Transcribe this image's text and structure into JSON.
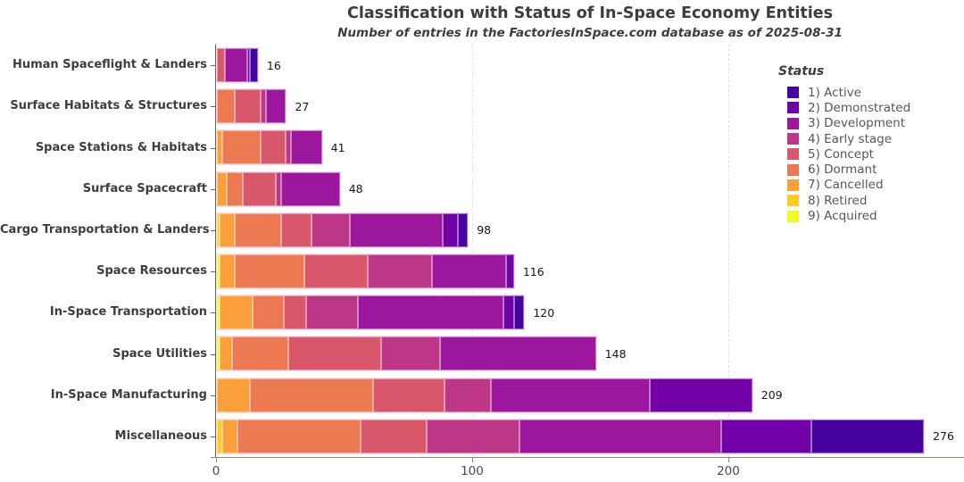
{
  "chart_data": {
    "type": "bar",
    "orientation": "horizontal",
    "stacked": true,
    "title": "Classification with Status of In-Space Economy Entities",
    "subtitle": "Number of entries in the FactoriesInSpace.com database as of 2025-08-31",
    "x_axis": {
      "min": 0,
      "max": 292,
      "ticks": [
        0,
        100,
        200
      ],
      "gridlines": [
        100,
        200
      ],
      "grid_style": "dashed"
    },
    "legend": {
      "title": "Status",
      "position": "top-right",
      "entries": [
        {
          "key": "active",
          "label": "1)  Active",
          "color": "#46039f"
        },
        {
          "key": "demonstrated",
          "label": "2)  Demonstrated",
          "color": "#7301a8"
        },
        {
          "key": "development",
          "label": "3)  Development",
          "color": "#9c179e"
        },
        {
          "key": "early_stage",
          "label": "4)  Early stage",
          "color": "#bd3786"
        },
        {
          "key": "concept",
          "label": "5)  Concept",
          "color": "#d8576b"
        },
        {
          "key": "dormant",
          "label": "6)  Dormant",
          "color": "#ed7953"
        },
        {
          "key": "cancelled",
          "label": "7)  Cancelled",
          "color": "#fb9f3a"
        },
        {
          "key": "retired",
          "label": "8)  Retired",
          "color": "#fdca26"
        },
        {
          "key": "acquired",
          "label": "9)  Acquired",
          "color": "#f0f921"
        }
      ]
    },
    "stack_order_note": "segments listed left-to-right (status 9 to 1)",
    "bars": [
      {
        "category": "Human Spaceflight & Landers",
        "total": 16,
        "segments": [
          {
            "status": "concept",
            "value": 3
          },
          {
            "status": "development",
            "value": 9
          },
          {
            "status": "demonstrated",
            "value": 1
          },
          {
            "status": "active",
            "value": 3
          }
        ]
      },
      {
        "category": "Surface Habitats & Structures",
        "total": 27,
        "segments": [
          {
            "status": "dormant",
            "value": 7
          },
          {
            "status": "concept",
            "value": 10
          },
          {
            "status": "early_stage",
            "value": 2
          },
          {
            "status": "development",
            "value": 8
          }
        ]
      },
      {
        "category": "Space Stations & Habitats",
        "total": 41,
        "segments": [
          {
            "status": "cancelled",
            "value": 2
          },
          {
            "status": "dormant",
            "value": 15
          },
          {
            "status": "concept",
            "value": 10
          },
          {
            "status": "early_stage",
            "value": 2
          },
          {
            "status": "development",
            "value": 12
          }
        ]
      },
      {
        "category": "Surface Spacecraft",
        "total": 48,
        "segments": [
          {
            "status": "cancelled",
            "value": 4
          },
          {
            "status": "dormant",
            "value": 6
          },
          {
            "status": "concept",
            "value": 13
          },
          {
            "status": "early_stage",
            "value": 2
          },
          {
            "status": "development",
            "value": 23
          }
        ]
      },
      {
        "category": "Cargo Transportation & Landers",
        "total": 98,
        "segments": [
          {
            "status": "retired",
            "value": 1
          },
          {
            "status": "cancelled",
            "value": 6
          },
          {
            "status": "dormant",
            "value": 18
          },
          {
            "status": "concept",
            "value": 12
          },
          {
            "status": "early_stage",
            "value": 15
          },
          {
            "status": "development",
            "value": 36
          },
          {
            "status": "demonstrated",
            "value": 6
          },
          {
            "status": "active",
            "value": 4
          }
        ]
      },
      {
        "category": "Space Resources",
        "total": 116,
        "segments": [
          {
            "status": "acquired",
            "value": 1
          },
          {
            "status": "cancelled",
            "value": 6
          },
          {
            "status": "dormant",
            "value": 27
          },
          {
            "status": "concept",
            "value": 25
          },
          {
            "status": "early_stage",
            "value": 25
          },
          {
            "status": "development",
            "value": 29
          },
          {
            "status": "demonstrated",
            "value": 3
          }
        ]
      },
      {
        "category": "In-Space Transportation",
        "total": 120,
        "segments": [
          {
            "status": "acquired",
            "value": 1
          },
          {
            "status": "cancelled",
            "value": 13
          },
          {
            "status": "dormant",
            "value": 12
          },
          {
            "status": "concept",
            "value": 9
          },
          {
            "status": "early_stage",
            "value": 20
          },
          {
            "status": "development",
            "value": 57
          },
          {
            "status": "demonstrated",
            "value": 4
          },
          {
            "status": "active",
            "value": 4
          }
        ]
      },
      {
        "category": "Space Utilities",
        "total": 148,
        "segments": [
          {
            "status": "acquired",
            "value": 1
          },
          {
            "status": "cancelled",
            "value": 5
          },
          {
            "status": "dormant",
            "value": 22
          },
          {
            "status": "concept",
            "value": 36
          },
          {
            "status": "early_stage",
            "value": 23
          },
          {
            "status": "development",
            "value": 61
          }
        ]
      },
      {
        "category": "In-Space Manufacturing",
        "total": 209,
        "segments": [
          {
            "status": "cancelled",
            "value": 13
          },
          {
            "status": "dormant",
            "value": 48
          },
          {
            "status": "concept",
            "value": 28
          },
          {
            "status": "early_stage",
            "value": 18
          },
          {
            "status": "development",
            "value": 62
          },
          {
            "status": "demonstrated",
            "value": 40
          }
        ]
      },
      {
        "category": "Miscellaneous",
        "total": 276,
        "segments": [
          {
            "status": "retired",
            "value": 2
          },
          {
            "status": "cancelled",
            "value": 6
          },
          {
            "status": "dormant",
            "value": 48
          },
          {
            "status": "concept",
            "value": 26
          },
          {
            "status": "early_stage",
            "value": 36
          },
          {
            "status": "development",
            "value": 79
          },
          {
            "status": "demonstrated",
            "value": 35
          },
          {
            "status": "active",
            "value": 44
          }
        ]
      }
    ]
  },
  "colors": {
    "background": "#ffffff",
    "title_text": "#3d3d3d",
    "axis_label_text": "#4d4d4d",
    "category_label_text": "#3d3d3d",
    "legend_text": "#565656",
    "x_axis_line": "#9a8468",
    "gridline": "#f3d9de"
  }
}
